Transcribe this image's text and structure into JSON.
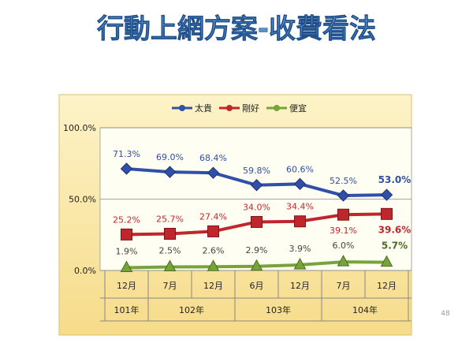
{
  "title": "行動上網方案-收費看法",
  "page_number": "48",
  "chart_data": {
    "type": "line",
    "categories": [
      "12月",
      "7月",
      "12月",
      "6月",
      "12月",
      "7月",
      "12月"
    ],
    "year_labels": [
      "101年",
      "102年",
      null,
      "103年",
      null,
      "104年",
      null
    ],
    "ylim": [
      0,
      100
    ],
    "yticks": [
      {
        "value": 0,
        "label": "0.0%"
      },
      {
        "value": 50,
        "label": "50.0%"
      },
      {
        "value": 100,
        "label": "100.0%"
      }
    ],
    "grid": true,
    "legend": "top",
    "series": [
      {
        "name": "太貴",
        "color": "#2f4fa8",
        "values": [
          71.3,
          69.0,
          68.4,
          59.8,
          60.6,
          52.5,
          53.0
        ],
        "value_labels": [
          "71.3%",
          "69.0%",
          "68.4%",
          "59.8%",
          "60.6%",
          "52.5%",
          "53.0%"
        ]
      },
      {
        "name": "剛好",
        "color": "#c0272d",
        "values": [
          25.2,
          25.7,
          27.4,
          34.0,
          34.4,
          39.1,
          39.6
        ],
        "value_labels": [
          "25.2%",
          "25.7%",
          "27.4%",
          "34.0%",
          "34.4%",
          "39.1%",
          "39.6%"
        ]
      },
      {
        "name": "便宜",
        "color": "#77a33a",
        "values": [
          1.9,
          2.5,
          2.6,
          2.9,
          3.9,
          6.0,
          5.7
        ],
        "value_labels": [
          "1.9%",
          "2.5%",
          "2.6%",
          "2.9%",
          "3.9%",
          "6.0%",
          "5.7%"
        ]
      }
    ]
  }
}
